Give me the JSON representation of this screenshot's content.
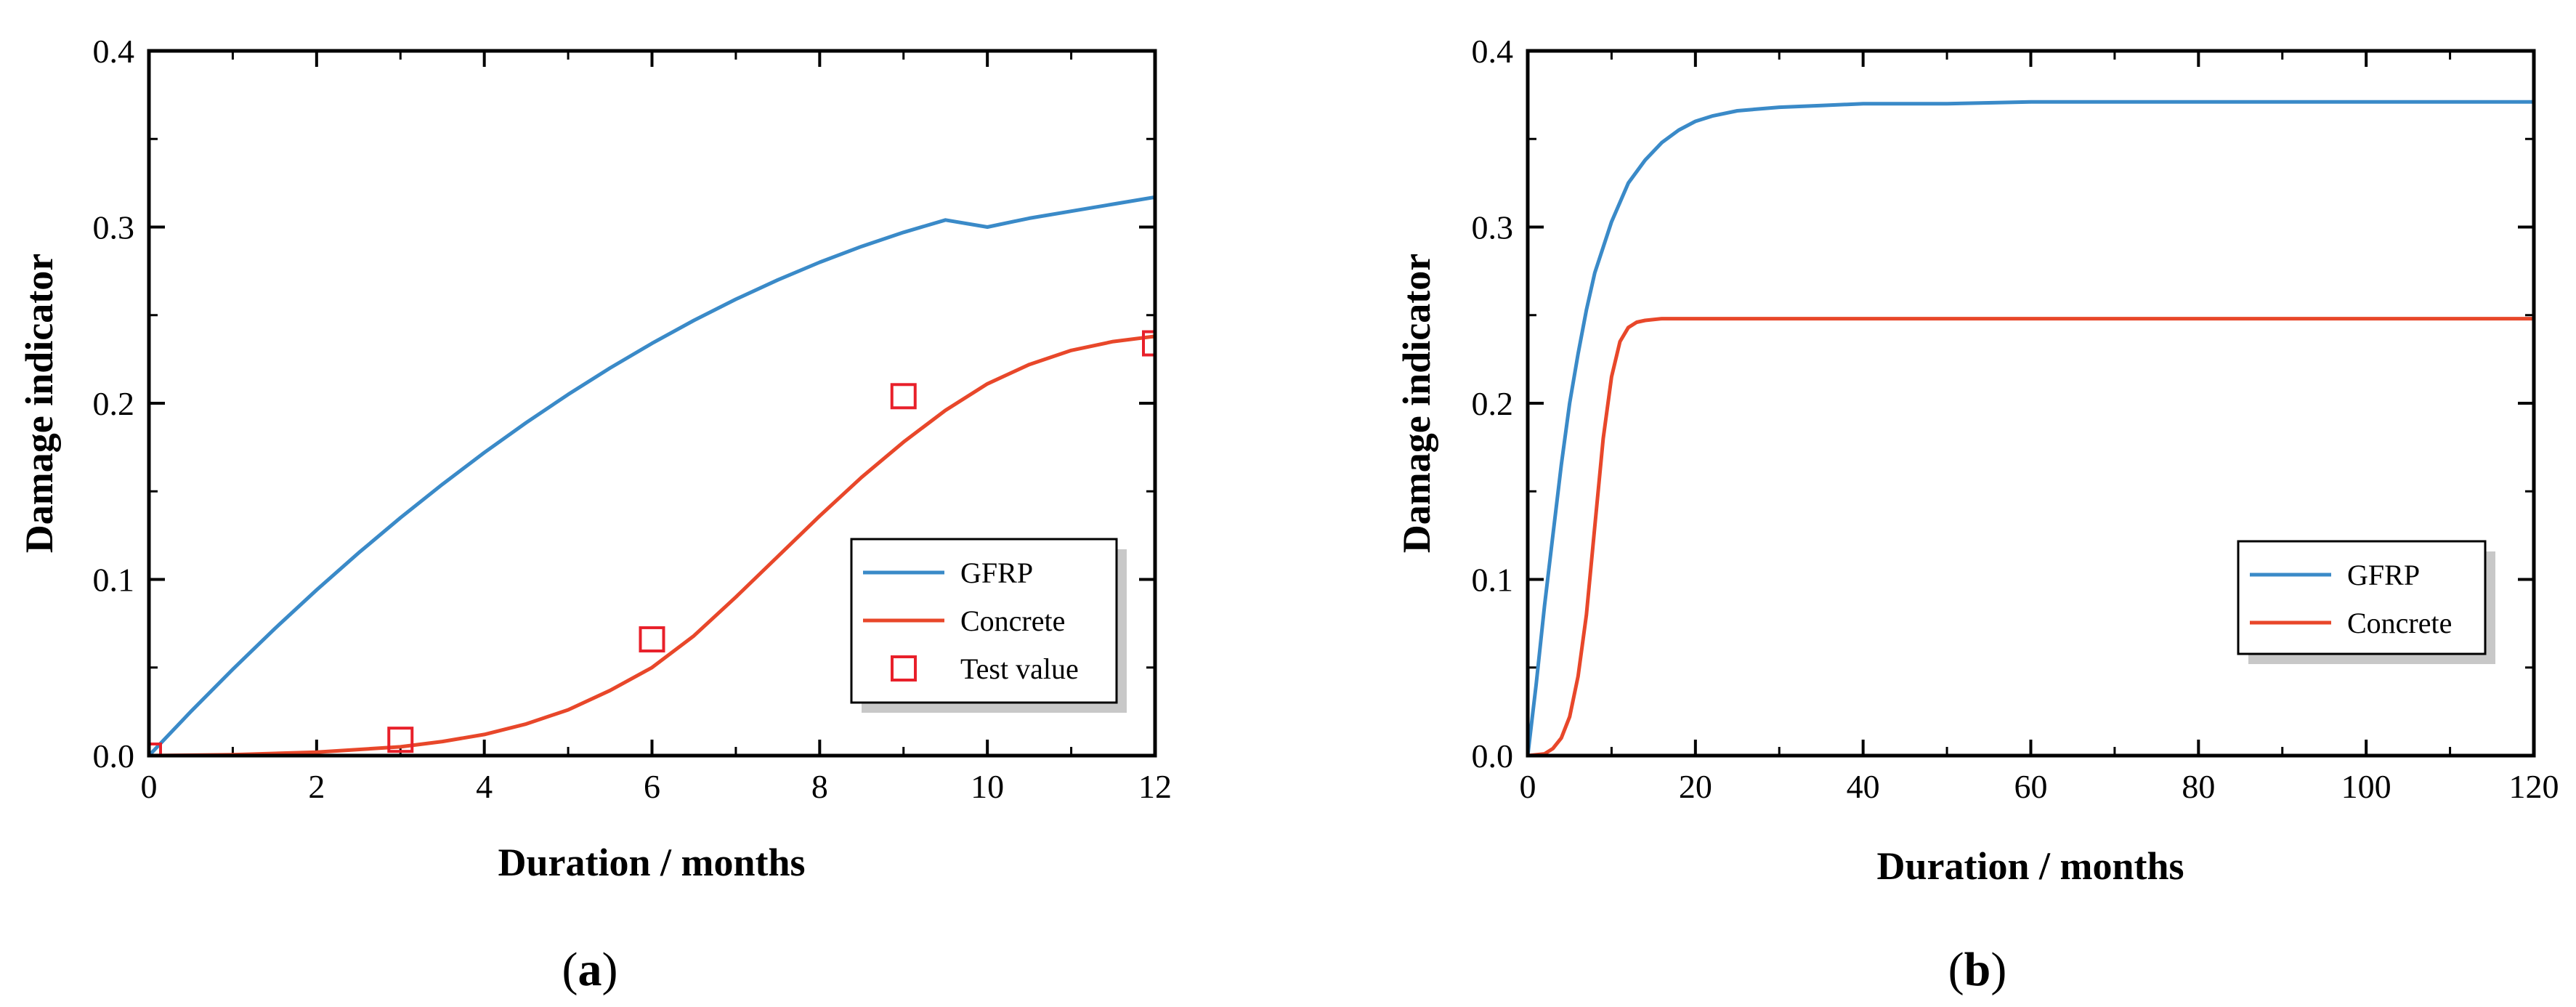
{
  "chart_data": [
    {
      "panel": "a",
      "type": "line",
      "xlabel": "Duration  / months",
      "ylabel": "Damage indicator",
      "xlim": [
        0,
        12
      ],
      "ylim": [
        0,
        0.4
      ],
      "xticks": [
        0,
        2,
        4,
        6,
        8,
        10,
        12
      ],
      "xtick_labels": [
        "0",
        "2",
        "4",
        "6",
        "8",
        "10",
        "12"
      ],
      "yticks": [
        0,
        0.1,
        0.2,
        0.3,
        0.4
      ],
      "ytick_labels": [
        "0.0",
        "0.1",
        "0.2",
        "0.3",
        "0.4"
      ],
      "legend_position": "bottom-right",
      "series": [
        {
          "name": "GFRP",
          "kind": "line",
          "color": "#3a8ac8",
          "x": [
            0,
            0.5,
            1,
            1.5,
            2,
            2.5,
            3,
            3.5,
            4,
            4.5,
            5,
            5.5,
            6,
            6.5,
            7,
            7.5,
            8,
            8.5,
            9,
            9.5,
            10,
            10.5,
            11,
            11.5,
            12
          ],
          "values": [
            0,
            0.025,
            0.049,
            0.072,
            0.094,
            0.115,
            0.135,
            0.154,
            0.172,
            0.189,
            0.205,
            0.22,
            0.234,
            0.247,
            0.259,
            0.27,
            0.28,
            0.289,
            0.297,
            0.304,
            0.3,
            0.305,
            0.309,
            0.313,
            0.317
          ]
        },
        {
          "name": "Concrete",
          "kind": "line",
          "color": "#e8472a",
          "x": [
            0,
            1,
            2,
            3,
            3.5,
            4,
            4.5,
            5,
            5.5,
            6,
            6.5,
            7,
            7.5,
            8,
            8.5,
            9,
            9.5,
            10,
            10.5,
            11,
            11.5,
            12
          ],
          "values": [
            0,
            0.0005,
            0.002,
            0.005,
            0.008,
            0.012,
            0.018,
            0.026,
            0.037,
            0.05,
            0.068,
            0.09,
            0.113,
            0.136,
            0.158,
            0.178,
            0.196,
            0.211,
            0.222,
            0.23,
            0.235,
            0.238
          ]
        },
        {
          "name": "Test value",
          "kind": "scatter",
          "marker": "open-square",
          "color": "#e8202a",
          "x": [
            0,
            3,
            6,
            9,
            12
          ],
          "values": [
            0.0,
            0.009,
            0.066,
            0.204,
            0.234
          ]
        }
      ],
      "panel_label": {
        "open": "(",
        "letter": "a",
        "close": ")"
      }
    },
    {
      "panel": "b",
      "type": "line",
      "xlabel": "Duration  / months",
      "ylabel": "Damage indicator",
      "xlim": [
        0,
        120
      ],
      "ylim": [
        0,
        0.4
      ],
      "xticks": [
        0,
        20,
        40,
        60,
        80,
        100,
        120
      ],
      "xtick_labels": [
        "0",
        "20",
        "40",
        "60",
        "80",
        "100",
        "120"
      ],
      "yticks": [
        0,
        0.1,
        0.2,
        0.3,
        0.4
      ],
      "ytick_labels": [
        "0.0",
        "0.1",
        "0.2",
        "0.3",
        "0.4"
      ],
      "legend_position": "bottom-right",
      "series": [
        {
          "name": "GFRP",
          "kind": "line",
          "color": "#3a8ac8",
          "x": [
            0,
            1,
            2,
            3,
            4,
            5,
            6,
            7,
            8,
            10,
            12,
            14,
            16,
            18,
            20,
            22,
            25,
            30,
            35,
            40,
            50,
            60,
            80,
            100,
            120
          ],
          "values": [
            0,
            0.04,
            0.085,
            0.125,
            0.165,
            0.2,
            0.228,
            0.253,
            0.274,
            0.303,
            0.325,
            0.338,
            0.348,
            0.355,
            0.36,
            0.363,
            0.366,
            0.368,
            0.369,
            0.37,
            0.37,
            0.371,
            0.371,
            0.371,
            0.371
          ]
        },
        {
          "name": "Concrete",
          "kind": "line",
          "color": "#e8472a",
          "x": [
            0,
            2,
            3,
            4,
            5,
            6,
            7,
            8,
            9,
            10,
            11,
            12,
            13,
            14,
            16,
            20,
            40,
            60,
            80,
            100,
            120
          ],
          "values": [
            0,
            0.001,
            0.004,
            0.01,
            0.022,
            0.045,
            0.08,
            0.13,
            0.18,
            0.215,
            0.235,
            0.243,
            0.246,
            0.247,
            0.248,
            0.248,
            0.248,
            0.248,
            0.248,
            0.248,
            0.248
          ]
        }
      ],
      "panel_label": {
        "open": "(",
        "letter": "b",
        "close": ")"
      }
    }
  ]
}
